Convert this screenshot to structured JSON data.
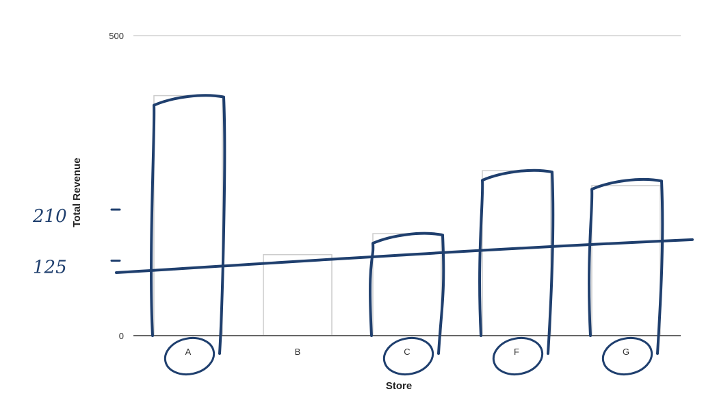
{
  "chart_data": {
    "type": "bar",
    "categories": [
      "A",
      "B",
      "C",
      "F",
      "G"
    ],
    "values": [
      400,
      135,
      170,
      275,
      250
    ],
    "xlabel": "Store",
    "ylabel": "Total Revenue",
    "ylim": [
      0,
      500
    ],
    "y_tick_labels": [
      "0",
      "500"
    ],
    "grid": true,
    "bar_fill": "#ffffff",
    "bar_outline": "#cccccc",
    "axis_color": "#666666",
    "gridline_color": "#dddddd",
    "annotations": {
      "color": "#1f3f6e",
      "handwritten_labels": [
        {
          "text": "210",
          "value": 210
        },
        {
          "text": "125",
          "value": 125
        }
      ],
      "drawn_bar_values": [
        400,
        0,
        170,
        275,
        260
      ],
      "trend_line_values": [
        105,
        160
      ],
      "circled_categories": [
        "A",
        "C",
        "F",
        "G"
      ]
    }
  }
}
